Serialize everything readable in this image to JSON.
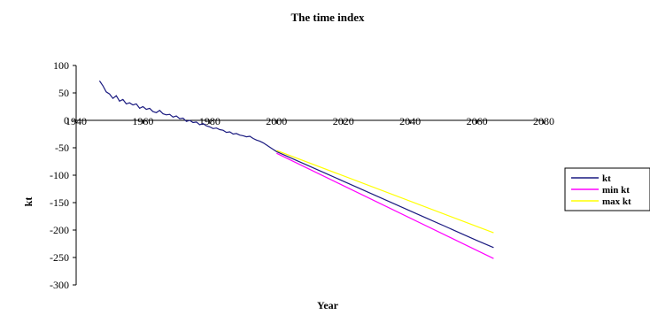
{
  "chart_data": {
    "type": "line",
    "title": "The time index",
    "xlabel": "Year",
    "ylabel": "kt",
    "xlim": [
      1940,
      2080
    ],
    "ylim": [
      -300,
      100
    ],
    "xticks": [
      "1940",
      "1960",
      "1980",
      "2000",
      "2020",
      "2040",
      "2060",
      "2080"
    ],
    "yticks": [
      "100",
      "50",
      "0",
      "-50",
      "-100",
      "-150",
      "-200",
      "-250",
      "-300"
    ],
    "grid": false,
    "legend_position": "right",
    "series": [
      {
        "name": "kt",
        "color": "#1a1a80",
        "x": [
          1947,
          1948,
          1949,
          1950,
          1951,
          1952,
          1953,
          1954,
          1955,
          1956,
          1957,
          1958,
          1959,
          1960,
          1961,
          1962,
          1963,
          1964,
          1965,
          1966,
          1967,
          1968,
          1969,
          1970,
          1971,
          1972,
          1973,
          1974,
          1975,
          1976,
          1977,
          1978,
          1979,
          1980,
          1981,
          1982,
          1983,
          1984,
          1985,
          1986,
          1987,
          1988,
          1989,
          1990,
          1991,
          1992,
          1993,
          1994,
          1995,
          1996,
          1997,
          1998,
          1999,
          2000,
          2005,
          2010,
          2015,
          2020,
          2025,
          2030,
          2035,
          2040,
          2045,
          2050,
          2055,
          2060,
          2065
        ],
        "y": [
          72,
          63,
          52,
          48,
          40,
          45,
          35,
          38,
          30,
          32,
          28,
          30,
          22,
          25,
          20,
          22,
          16,
          14,
          18,
          12,
          10,
          11,
          6,
          8,
          3,
          4,
          -2,
          0,
          -4,
          -3,
          -8,
          -6,
          -10,
          -12,
          -15,
          -14,
          -17,
          -18,
          -22,
          -21,
          -25,
          -24,
          -27,
          -28,
          -30,
          -29,
          -33,
          -36,
          -38,
          -41,
          -45,
          -49,
          -53,
          -57,
          -70.5,
          -84,
          -97.5,
          -111,
          -124.5,
          -138,
          -151.5,
          -165,
          -178.5,
          -192,
          -205.5,
          -219,
          -232
        ]
      },
      {
        "name": "min kt",
        "color": "#ff00ff",
        "x": [
          2000,
          2065
        ],
        "y": [
          -60,
          -252
        ]
      },
      {
        "name": "max kt",
        "color": "#ffff00",
        "x": [
          2000,
          2065
        ],
        "y": [
          -55,
          -205
        ]
      }
    ]
  }
}
